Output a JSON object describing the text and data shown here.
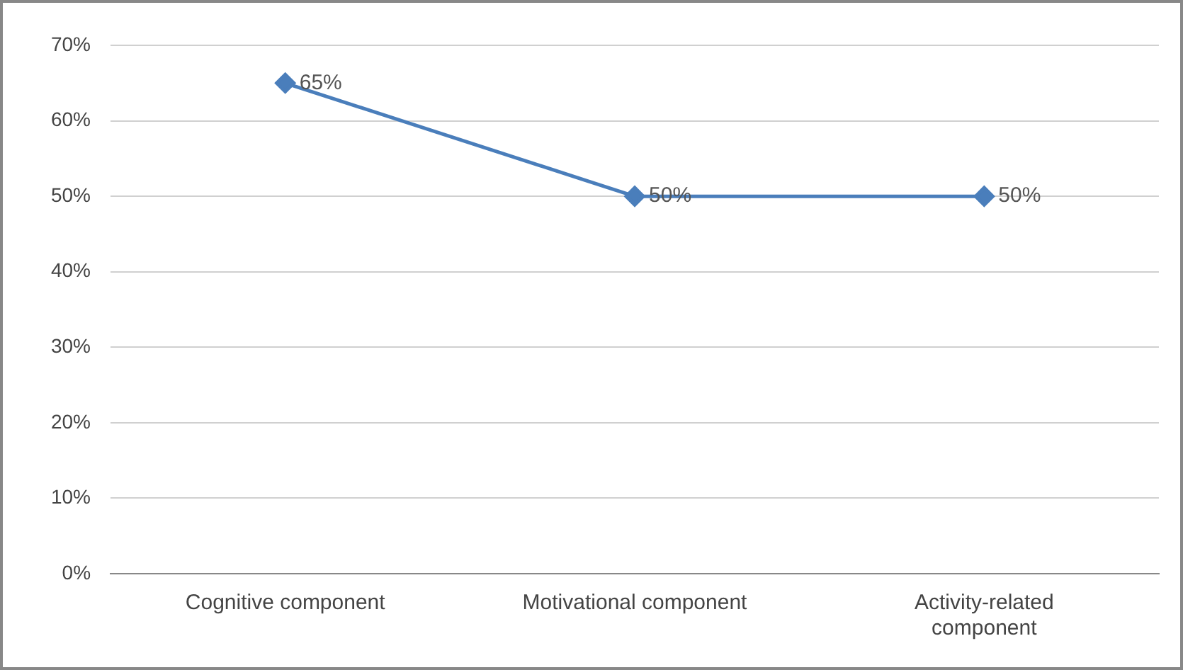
{
  "chart_data": {
    "type": "line",
    "categories": [
      "Cognitive component",
      "Motivational component",
      "Activity-related component"
    ],
    "series": [
      {
        "color": "#4a7ebb",
        "values": [
          65,
          50,
          50
        ],
        "value_labels": [
          "65%",
          "50%",
          "50%"
        ]
      }
    ],
    "ylim": [
      0,
      70
    ],
    "yticks": [
      {
        "value": 0,
        "label": "0%"
      },
      {
        "value": 10,
        "label": "10%"
      },
      {
        "value": 20,
        "label": "20%"
      },
      {
        "value": 30,
        "label": "30%"
      },
      {
        "value": 40,
        "label": "40%"
      },
      {
        "value": 50,
        "label": "50%"
      },
      {
        "value": 60,
        "label": "60%"
      },
      {
        "value": 70,
        "label": "70%"
      }
    ],
    "grid": "y",
    "legend": false,
    "marker": "diamond",
    "line_style": "solid"
  }
}
